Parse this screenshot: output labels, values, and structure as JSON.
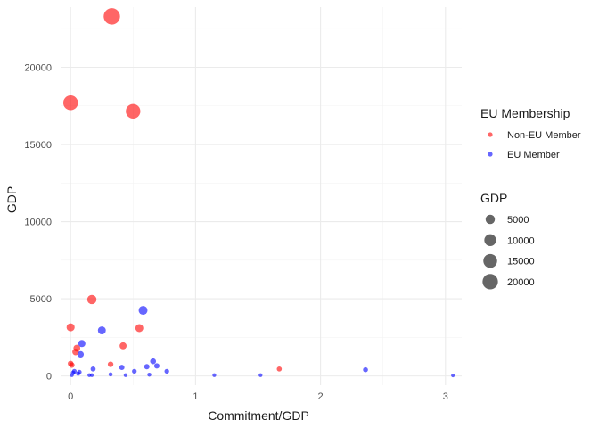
{
  "chart_data": {
    "type": "scatter",
    "xlabel": "Commitment/GDP",
    "ylabel": "GDP",
    "xlim": [
      -0.08,
      3.13
    ],
    "ylim": [
      -600,
      23900
    ],
    "x_ticks": [
      0,
      1,
      2,
      3
    ],
    "x_tick_labels": [
      "0",
      "1",
      "2",
      "3"
    ],
    "y_ticks": [
      0,
      5000,
      10000,
      15000,
      20000
    ],
    "y_tick_labels": [
      "0",
      "5000",
      "10000",
      "15000",
      "20000"
    ],
    "grid": true,
    "colors": {
      "Non-EU Member": "#ff0000",
      "EU Member": "#0000ff"
    },
    "point_opacity": 0.6,
    "legend_color": {
      "title": "EU Membership",
      "entries": [
        "Non-EU Member",
        "EU Member"
      ],
      "placement": "right"
    },
    "legend_size": {
      "title": "GDP",
      "values": [
        5000,
        10000,
        15000,
        20000
      ],
      "labels": [
        "5000",
        "10000",
        "15000",
        "20000"
      ],
      "placement": "right"
    },
    "series": [
      {
        "name": "Non-EU Member",
        "points": [
          {
            "x": 0.33,
            "y": 23300
          },
          {
            "x": 0.0,
            "y": 17700
          },
          {
            "x": 0.5,
            "y": 17150
          },
          {
            "x": 0.17,
            "y": 4950
          },
          {
            "x": 0.0,
            "y": 3150
          },
          {
            "x": 0.55,
            "y": 3100
          },
          {
            "x": 0.42,
            "y": 1950
          },
          {
            "x": 0.05,
            "y": 1800
          },
          {
            "x": 0.04,
            "y": 1550
          },
          {
            "x": 0.32,
            "y": 750
          },
          {
            "x": 0.0,
            "y": 800
          },
          {
            "x": 0.01,
            "y": 700
          },
          {
            "x": 1.67,
            "y": 450
          }
        ]
      },
      {
        "name": "EU Member",
        "points": [
          {
            "x": 0.58,
            "y": 4250
          },
          {
            "x": 0.25,
            "y": 2950
          },
          {
            "x": 0.09,
            "y": 2100
          },
          {
            "x": 0.08,
            "y": 1400
          },
          {
            "x": 0.66,
            "y": 950
          },
          {
            "x": 0.69,
            "y": 650
          },
          {
            "x": 0.61,
            "y": 600
          },
          {
            "x": 0.41,
            "y": 550
          },
          {
            "x": 0.18,
            "y": 450
          },
          {
            "x": 0.51,
            "y": 300
          },
          {
            "x": 0.77,
            "y": 300
          },
          {
            "x": 0.03,
            "y": 300
          },
          {
            "x": 0.07,
            "y": 250
          },
          {
            "x": 0.02,
            "y": 200
          },
          {
            "x": 0.06,
            "y": 150
          },
          {
            "x": 0.15,
            "y": 50
          },
          {
            "x": 0.17,
            "y": 50
          },
          {
            "x": 0.32,
            "y": 100
          },
          {
            "x": 0.44,
            "y": 50
          },
          {
            "x": 0.63,
            "y": 80
          },
          {
            "x": 0.01,
            "y": 50
          },
          {
            "x": 1.15,
            "y": 50
          },
          {
            "x": 1.52,
            "y": 50
          },
          {
            "x": 2.36,
            "y": 400
          },
          {
            "x": 3.06,
            "y": 30
          }
        ]
      }
    ]
  }
}
